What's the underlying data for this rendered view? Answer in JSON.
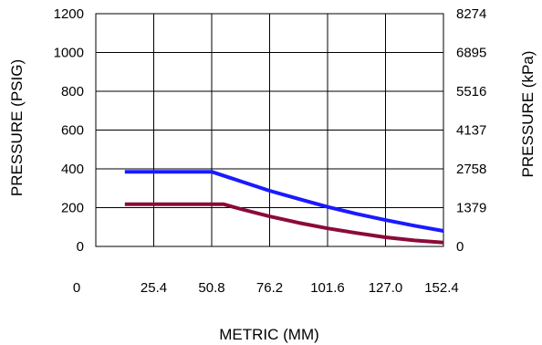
{
  "chart_data": {
    "type": "line",
    "title": "",
    "xlabel": "METRIC (MM)",
    "ylabel_left": "PRESSURE (PSIG)",
    "ylabel_right": "PRESSURE (kPa)",
    "xlim": [
      0,
      152.4
    ],
    "ylim": [
      0,
      1200
    ],
    "grid": true,
    "x_ticks": [
      "0",
      "25.4",
      "50.8",
      "76.2",
      "101.6",
      "127.0",
      "152.4"
    ],
    "y_ticks_left": [
      "0",
      "200",
      "400",
      "600",
      "800",
      "1000",
      "1200"
    ],
    "y_ticks_right": [
      "0",
      "1379",
      "2758",
      "4137",
      "5516",
      "6895",
      "8274"
    ],
    "series": [
      {
        "color": "#1a1aff",
        "x": [
          12.7,
          50.8,
          63.5,
          76.2,
          88.9,
          101.6,
          114.3,
          127.0,
          139.7,
          152.4
        ],
        "y": [
          385,
          385,
          336,
          287,
          245,
          204,
          168,
          136,
          107,
          80
        ]
      },
      {
        "color": "#8b0a3a",
        "x": [
          12.7,
          50.8,
          55.9,
          63.5,
          76.2,
          88.9,
          101.6,
          114.3,
          127.0,
          139.7,
          152.4
        ],
        "y": [
          218,
          218,
          218,
          193,
          155,
          122,
          93,
          69,
          47,
          31,
          20
        ]
      }
    ]
  }
}
